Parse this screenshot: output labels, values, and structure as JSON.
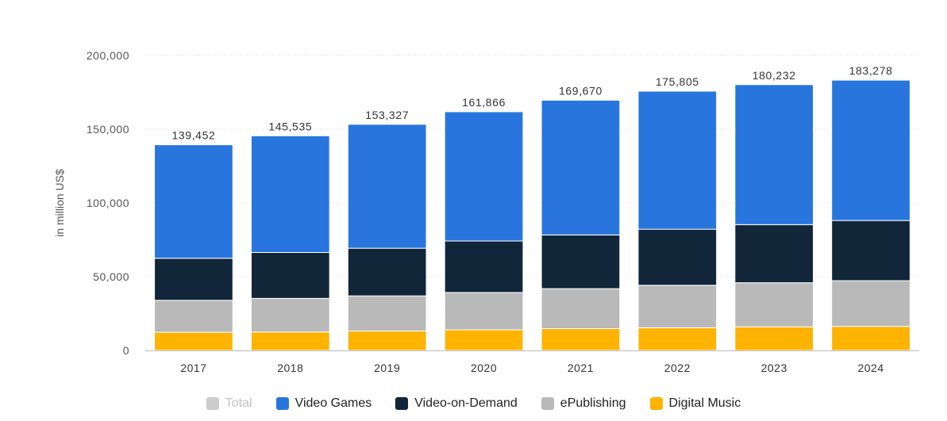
{
  "chart_data": {
    "type": "bar",
    "stacked": true,
    "categories": [
      "2017",
      "2018",
      "2019",
      "2020",
      "2021",
      "2022",
      "2023",
      "2024"
    ],
    "ylabel": "in million US$",
    "ylim": [
      0,
      200000
    ],
    "yticks": [
      0,
      50000,
      100000,
      150000,
      200000
    ],
    "ytick_labels": [
      "0",
      "50,000",
      "100,000",
      "150,000",
      "200,000"
    ],
    "grid": true,
    "legend_position": "bottom",
    "totals": [
      139452,
      145535,
      153327,
      161866,
      169670,
      175805,
      180232,
      183278
    ],
    "total_labels": [
      "139,452",
      "145,535",
      "153,327",
      "161,866",
      "169,670",
      "175,805",
      "180,232",
      "183,278"
    ],
    "series": [
      {
        "name": "Digital Music",
        "color": "#fdb300",
        "values": [
          12300,
          12500,
          13200,
          14000,
          14800,
          15400,
          16000,
          16300
        ]
      },
      {
        "name": "ePublishing",
        "color": "#b9b9b9",
        "values": [
          21700,
          22800,
          23800,
          25300,
          27100,
          28800,
          29900,
          31000
        ]
      },
      {
        "name": "Video-on-Demand",
        "color": "#12263a",
        "values": [
          28500,
          31100,
          32300,
          34900,
          36400,
          38000,
          39400,
          40800
        ]
      },
      {
        "name": "Video Games",
        "color": "#2876dd",
        "values": [
          76952,
          79135,
          84027,
          87666,
          91370,
          93605,
          94932,
          95178
        ]
      }
    ]
  },
  "legend": {
    "items": [
      {
        "label": "Total",
        "color": "#cccccc",
        "hidden": true
      },
      {
        "label": "Video Games",
        "color": "#2876dd",
        "hidden": false
      },
      {
        "label": "Video-on-Demand",
        "color": "#12263a",
        "hidden": false
      },
      {
        "label": "ePublishing",
        "color": "#b9b9b9",
        "hidden": false
      },
      {
        "label": "Digital Music",
        "color": "#fdb300",
        "hidden": false
      }
    ]
  }
}
